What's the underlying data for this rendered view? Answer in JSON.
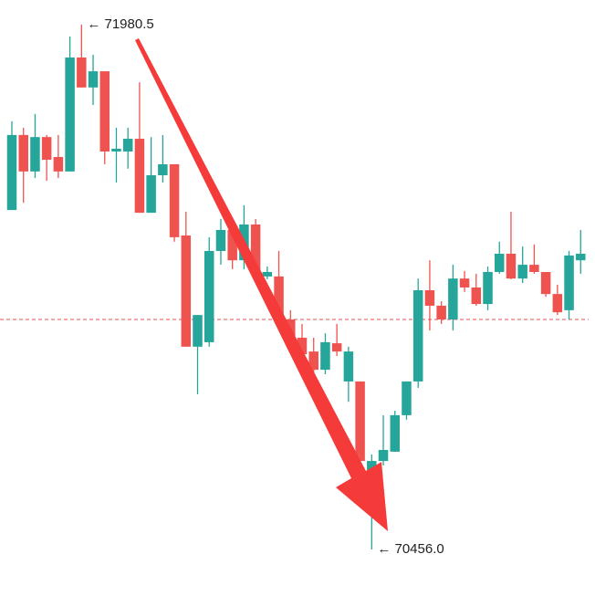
{
  "chart_data": {
    "type": "candlestick",
    "up_color": "#26a69a",
    "down_color": "#ef5350",
    "price_line": 71124,
    "price_line_color": "#e05050",
    "annotations": [
      {
        "value": 71980.5,
        "label": "← 71980.5"
      },
      {
        "value": 70456,
        "label": "← 70456.0"
      }
    ],
    "open": [
      71442,
      71660,
      71554,
      71654,
      71596,
      71554,
      71885,
      71798,
      71845,
      71612,
      71612,
      71649,
      71434,
      71543,
      71575,
      71368,
      71045,
      71058,
      71323,
      71384,
      71296,
      71400,
      71249,
      71249,
      71124,
      71071,
      71031,
      70978,
      71055,
      70944,
      70944,
      70634,
      70713,
      70740,
      70846,
      70944,
      71209,
      71164,
      71124,
      71243,
      71217,
      71169,
      71262,
      71315,
      71243,
      71283,
      71262,
      71198,
      71151,
      71296
    ],
    "high": [
      71700,
      71681,
      71721,
      71660,
      71660,
      71946,
      71980.5,
      71893,
      71845,
      71681,
      71681,
      71813,
      71654,
      71660,
      71575,
      71437,
      71137,
      71363,
      71416,
      71402,
      71456,
      71416,
      71278,
      71323,
      71151,
      71111,
      71071,
      71084,
      71111,
      71045,
      70944,
      70732,
      70846,
      70859,
      70944,
      71243,
      71296,
      71177,
      71283,
      71265,
      71257,
      71278,
      71350,
      71437,
      71336,
      71342,
      71262,
      71225,
      71323,
      71384
    ],
    "low": [
      71442,
      71463,
      71535,
      71527,
      71535,
      71554,
      71798,
      71747,
      71575,
      71522,
      71562,
      71434,
      71434,
      71522,
      71350,
      71045,
      70907,
      71045,
      71283,
      71270,
      71270,
      71243,
      71241,
      71111,
      71045,
      71005,
      70965,
      70965,
      71018,
      70885,
      70647,
      70456,
      70700,
      70740,
      70833,
      70925,
      71092,
      71111,
      71092,
      71204,
      71164,
      71151,
      71257,
      71241,
      71230,
      71257,
      71190,
      71137,
      71124,
      71257
    ],
    "close": [
      71660,
      71554,
      71654,
      71588,
      71554,
      71885,
      71798,
      71845,
      71612,
      71620,
      71649,
      71434,
      71543,
      71575,
      71363,
      71045,
      71137,
      71323,
      71384,
      71296,
      71400,
      71257,
      71262,
      71124,
      71071,
      71023,
      70978,
      71058,
      71031,
      71031,
      70713,
      70713,
      70745,
      70846,
      70944,
      71209,
      71164,
      71124,
      71243,
      71217,
      71169,
      71262,
      71315,
      71243,
      71283,
      71262,
      71198,
      71145,
      71310,
      71315
    ]
  }
}
